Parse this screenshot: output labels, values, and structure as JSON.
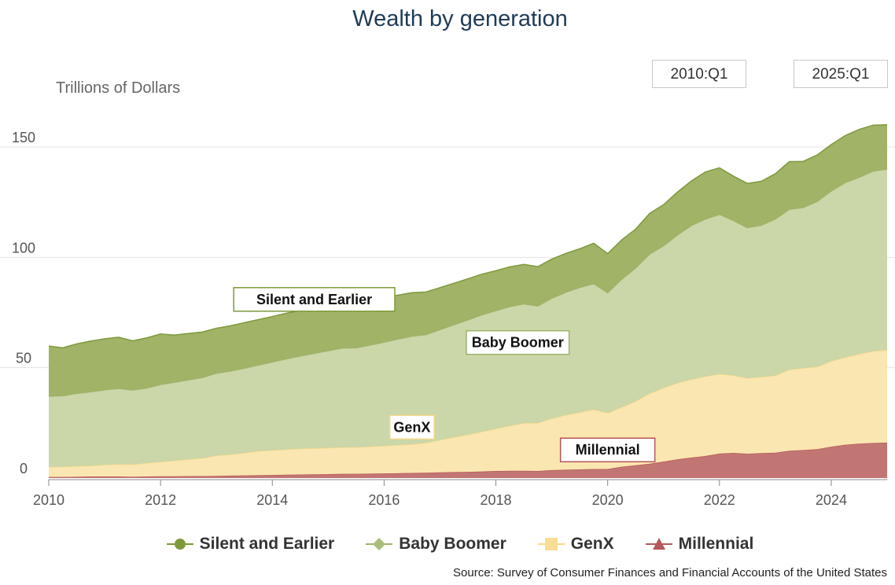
{
  "title": "Wealth by generation",
  "range": {
    "from": "2010:Q1",
    "to": "2025:Q1"
  },
  "source": "Source: Survey of Consumer Finances and Financial Accounts of the United States",
  "chart_data": {
    "type": "area",
    "stacked": true,
    "ylabel": "Trillions of Dollars",
    "xlim": [
      2010,
      2025
    ],
    "ylim": [
      0,
      165
    ],
    "x_ticks": [
      "2010",
      "2012",
      "2014",
      "2016",
      "2018",
      "2020",
      "2022",
      "2024"
    ],
    "y_ticks": [
      "0",
      "50",
      "100",
      "150"
    ],
    "grid": "horizontal",
    "legend_position": "bottom",
    "x": [
      2010.0,
      2010.25,
      2010.5,
      2010.75,
      2011.0,
      2011.25,
      2011.5,
      2011.75,
      2012.0,
      2012.25,
      2012.5,
      2012.75,
      2013.0,
      2013.25,
      2013.5,
      2013.75,
      2014.0,
      2014.25,
      2014.5,
      2014.75,
      2015.0,
      2015.25,
      2015.5,
      2015.75,
      2016.0,
      2016.25,
      2016.5,
      2016.75,
      2017.0,
      2017.25,
      2017.5,
      2017.75,
      2018.0,
      2018.25,
      2018.5,
      2018.75,
      2019.0,
      2019.25,
      2019.5,
      2019.75,
      2020.0,
      2020.25,
      2020.5,
      2020.75,
      2021.0,
      2021.25,
      2021.5,
      2021.75,
      2022.0,
      2022.25,
      2022.5,
      2022.75,
      2023.0,
      2023.25,
      2023.5,
      2023.75,
      2024.0,
      2024.25,
      2024.5,
      2024.75,
      2025.0
    ],
    "series": [
      {
        "name": "Millennial",
        "color": "#b5585a",
        "fill": "#c27674",
        "values": [
          0.5,
          0.5,
          0.6,
          0.7,
          0.7,
          0.7,
          0.6,
          0.7,
          0.8,
          0.8,
          0.9,
          0.9,
          1.0,
          1.1,
          1.2,
          1.3,
          1.4,
          1.5,
          1.6,
          1.7,
          1.8,
          1.9,
          1.9,
          2.0,
          2.1,
          2.2,
          2.3,
          2.4,
          2.6,
          2.7,
          2.8,
          3.0,
          3.2,
          3.3,
          3.3,
          3.2,
          3.6,
          3.8,
          3.9,
          4.1,
          4.1,
          5.1,
          5.8,
          6.5,
          7.5,
          8.5,
          9.3,
          10.0,
          11.1,
          11.4,
          11.0,
          11.3,
          11.5,
          12.4,
          12.7,
          13.1,
          14.2,
          15.1,
          15.6,
          15.9,
          16.1
        ]
      },
      {
        "name": "GenX",
        "color": "#f5d98a",
        "fill": "#fae6b0",
        "values": [
          4.6,
          4.6,
          4.8,
          4.9,
          5.3,
          5.6,
          5.6,
          6.1,
          6.6,
          7.1,
          7.6,
          8.1,
          9.2,
          9.6,
          10.2,
          10.9,
          11.2,
          11.5,
          11.7,
          11.8,
          11.9,
          12.0,
          12.1,
          12.3,
          12.5,
          12.8,
          13.0,
          13.6,
          14.7,
          15.8,
          16.9,
          18.0,
          19.2,
          20.4,
          21.6,
          21.8,
          23.4,
          24.8,
          25.9,
          27.0,
          25.4,
          27.0,
          29.0,
          31.8,
          33.4,
          34.6,
          35.4,
          36.1,
          36.1,
          35.1,
          34.3,
          34.5,
          35.0,
          36.7,
          37.2,
          37.3,
          38.8,
          39.6,
          40.6,
          41.6,
          41.9
        ]
      },
      {
        "name": "Baby Boomer",
        "color": "#9cb46a",
        "fill": "#cbd6a9",
        "values": [
          32.0,
          32.2,
          33.0,
          33.5,
          34.0,
          34.3,
          33.7,
          34.0,
          35.0,
          35.5,
          36.0,
          36.6,
          37.3,
          37.8,
          38.4,
          39.0,
          40.0,
          41.0,
          42.0,
          43.0,
          44.0,
          45.0,
          45.0,
          46.0,
          47.0,
          48.0,
          49.0,
          49.0,
          50.0,
          51.0,
          52.0,
          53.0,
          53.5,
          54.0,
          54.0,
          53.0,
          54.5,
          55.6,
          56.6,
          57.0,
          54.5,
          58.0,
          60.4,
          63.2,
          64.4,
          67.1,
          69.8,
          71.3,
          72.3,
          70.2,
          68.2,
          68.8,
          70.9,
          72.7,
          72.7,
          75.0,
          77.1,
          79.2,
          80.1,
          81.6,
          82.0
        ]
      },
      {
        "name": "Silent and Earlier",
        "color": "#7e9a3c",
        "fill": "#a0b367",
        "values": [
          22.7,
          21.7,
          22.4,
          23.0,
          23.1,
          23.2,
          22.3,
          22.7,
          22.9,
          21.4,
          21.0,
          20.6,
          20.4,
          20.5,
          20.6,
          20.6,
          20.6,
          20.7,
          20.6,
          20.4,
          20.3,
          20.1,
          20.0,
          20.0,
          19.9,
          19.9,
          19.7,
          19.3,
          19.0,
          18.8,
          18.6,
          18.4,
          18.1,
          18.0,
          17.9,
          17.8,
          17.7,
          17.6,
          17.5,
          18.3,
          17.7,
          17.8,
          17.6,
          18.4,
          18.6,
          19.4,
          20.2,
          21.3,
          21.1,
          20.1,
          20.0,
          19.9,
          20.5,
          21.6,
          20.9,
          21.0,
          21.0,
          21.3,
          21.7,
          20.8,
          20.1
        ]
      }
    ],
    "annotations": [
      {
        "text": "Silent and Earlier",
        "series": "Silent and Earlier",
        "x": 2014.75
      },
      {
        "text": "Baby Boomer",
        "series": "Baby Boomer",
        "x": 2018.25
      },
      {
        "text": "GenX",
        "series": "GenX",
        "x": 2016.5
      },
      {
        "text": "Millennial",
        "series": "Millennial",
        "x": 2020.0
      }
    ]
  }
}
